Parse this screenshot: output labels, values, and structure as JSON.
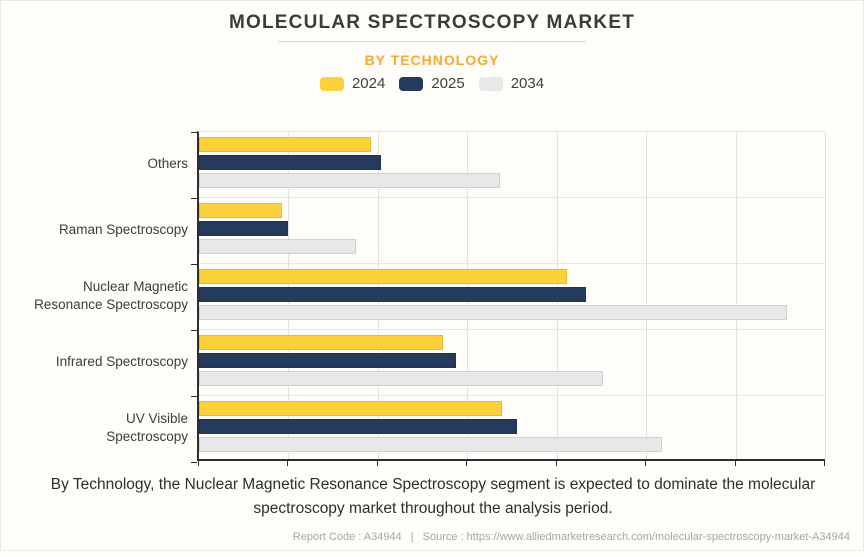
{
  "header": {
    "title": "MOLECULAR SPECTROSCOPY MARKET",
    "subtitle": "BY TECHNOLOGY"
  },
  "legend": {
    "items": [
      {
        "label": "2024",
        "color": "#fdd13c"
      },
      {
        "label": "2025",
        "color": "#253a5c"
      },
      {
        "label": "2034",
        "color": "#e8e8e8"
      }
    ]
  },
  "chart_data": {
    "type": "bar",
    "orientation": "horizontal",
    "title": "MOLECULAR SPECTROSCOPY MARKET",
    "subtitle": "BY TECHNOLOGY",
    "categories": [
      "Others",
      "Raman Spectroscopy",
      "Nuclear Magnetic Resonance Spectroscopy",
      "Infrared Spectroscopy",
      "UV Visible Spectroscopy"
    ],
    "label_lines": [
      [
        "Others"
      ],
      [
        "Raman Spectroscopy"
      ],
      [
        "Nuclear Magnetic",
        "Resonance Spectroscopy"
      ],
      [
        "Infrared Spectroscopy"
      ],
      [
        "UV Visible",
        "Spectroscopy"
      ]
    ],
    "series": [
      {
        "name": "2024",
        "color": "#fdd13c",
        "values": [
          27.5,
          13.3,
          58.8,
          39.0,
          48.4
        ]
      },
      {
        "name": "2025",
        "color": "#253a5c",
        "values": [
          29.1,
          14.2,
          61.8,
          41.0,
          50.8
        ]
      },
      {
        "name": "2034",
        "color": "#e8e8e8",
        "values": [
          48.1,
          25.0,
          93.9,
          64.6,
          73.9
        ]
      }
    ],
    "xlabel": "",
    "ylabel": "",
    "xlim": [
      0,
      100
    ],
    "x_axis_tick_labels_visible": false,
    "gridline_intervals": 7,
    "grid": true,
    "legend_position": "top",
    "value_unit_note": "axis has no numeric labels; values expressed as % of axis length"
  },
  "footer": {
    "text": "By Technology, the Nuclear Magnetic Resonance Spectroscopy segment is expected to dominate the molecular spectroscopy market throughout the analysis period."
  },
  "statusbar": {
    "report_code": "Report Code : A34944",
    "separator": "|",
    "source": "Source : https://www.alliedmarketresearch.com/molecular-spectroscopy-market-A34944"
  }
}
